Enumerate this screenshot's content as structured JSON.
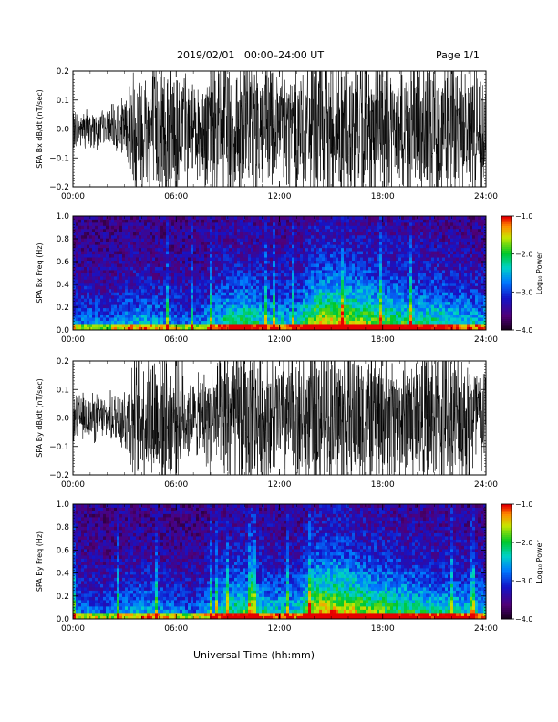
{
  "header": {
    "title": "2019/02/01   00:00–24:00 UT",
    "page": "Page 1/1"
  },
  "footer": {
    "xlabel": "Universal Time (hh:mm)"
  },
  "chart_data": [
    {
      "type": "line",
      "ylabel": "SPA Bx dB/dt (nT/sec)",
      "xlim": [
        0,
        24
      ],
      "ylim": [
        -0.2,
        0.2
      ],
      "xticks": [
        "00:00",
        "06:00",
        "12:00",
        "18:00",
        "24:00"
      ],
      "yticks": [
        "−0.2",
        "−0.1",
        "0.0",
        "0.1",
        "0.2"
      ],
      "amplitude_profile": {
        "hours": [
          0,
          1,
          2,
          3,
          3.5,
          4,
          5,
          6,
          7,
          8,
          9,
          10,
          11,
          12,
          13,
          14,
          15,
          16,
          17,
          18,
          19,
          20,
          21,
          22,
          23,
          24
        ],
        "amplitude": [
          0.05,
          0.06,
          0.05,
          0.09,
          0.18,
          0.2,
          0.22,
          0.22,
          0.12,
          0.2,
          0.22,
          0.22,
          0.22,
          0.18,
          0.2,
          0.22,
          0.22,
          0.22,
          0.22,
          0.2,
          0.2,
          0.22,
          0.22,
          0.22,
          0.2,
          0.15
        ]
      }
    },
    {
      "type": "heatmap",
      "ylabel": "SPA Bx Freq (Hz)",
      "xlim": [
        0,
        24
      ],
      "ylim": [
        0,
        1
      ],
      "xticks": [
        "00:00",
        "06:00",
        "12:00",
        "18:00",
        "24:00"
      ],
      "yticks": [
        "0.0",
        "0.2",
        "0.4",
        "0.6",
        "0.8",
        "1.0"
      ],
      "colorbar": {
        "label": "Log₁₀ Power",
        "range": [
          -4,
          -1
        ],
        "ticks": [
          "−4.0",
          "−3.0",
          "−2.0",
          "−1.0"
        ]
      },
      "activity_profile": {
        "hours": [
          0,
          1,
          2,
          3,
          4,
          5,
          6,
          7,
          8,
          9,
          10,
          11,
          12,
          13,
          14,
          15,
          16,
          17,
          18,
          19,
          20,
          21,
          22,
          23,
          24
        ],
        "level": [
          0.35,
          0.35,
          0.3,
          0.4,
          0.45,
          0.4,
          0.35,
          0.3,
          0.45,
          0.6,
          0.65,
          0.55,
          0.5,
          0.5,
          0.8,
          0.85,
          0.8,
          0.75,
          0.7,
          0.65,
          0.6,
          0.6,
          0.55,
          0.5,
          0.45
        ]
      }
    },
    {
      "type": "line",
      "ylabel": "SPA By dB/dt (nT/sec)",
      "xlim": [
        0,
        24
      ],
      "ylim": [
        -0.2,
        0.2
      ],
      "xticks": [
        "00:00",
        "06:00",
        "12:00",
        "18:00",
        "24:00"
      ],
      "yticks": [
        "−0.2",
        "−0.1",
        "0.0",
        "0.1",
        "0.2"
      ],
      "amplitude_profile": {
        "hours": [
          0,
          1,
          2,
          3,
          3.5,
          4,
          5,
          6,
          7,
          8,
          9,
          10,
          11,
          12,
          13,
          14,
          15,
          16,
          17,
          18,
          19,
          20,
          21,
          22,
          23,
          24
        ],
        "amplitude": [
          0.06,
          0.07,
          0.06,
          0.1,
          0.18,
          0.2,
          0.22,
          0.18,
          0.1,
          0.15,
          0.22,
          0.22,
          0.2,
          0.18,
          0.2,
          0.22,
          0.22,
          0.22,
          0.22,
          0.2,
          0.18,
          0.2,
          0.2,
          0.22,
          0.2,
          0.15
        ]
      }
    },
    {
      "type": "heatmap",
      "ylabel": "SPA By Freq (Hz)",
      "xlim": [
        0,
        24
      ],
      "ylim": [
        0,
        1
      ],
      "xticks": [
        "00:00",
        "06:00",
        "12:00",
        "18:00",
        "24:00"
      ],
      "yticks": [
        "0.0",
        "0.2",
        "0.4",
        "0.6",
        "0.8",
        "1.0"
      ],
      "colorbar": {
        "label": "Log₁₀ Power",
        "range": [
          -4,
          -1
        ],
        "ticks": [
          "−4.0",
          "−3.0",
          "−2.0",
          "−1.0"
        ]
      },
      "activity_profile": {
        "hours": [
          0,
          1,
          2,
          3,
          4,
          5,
          6,
          7,
          8,
          9,
          10,
          11,
          12,
          13,
          14,
          15,
          16,
          17,
          18,
          19,
          20,
          21,
          22,
          23,
          24
        ],
        "level": [
          0.35,
          0.35,
          0.3,
          0.4,
          0.45,
          0.4,
          0.35,
          0.3,
          0.45,
          0.6,
          0.65,
          0.55,
          0.5,
          0.5,
          0.85,
          0.9,
          0.85,
          0.75,
          0.7,
          0.65,
          0.6,
          0.55,
          0.55,
          0.5,
          0.45
        ]
      }
    }
  ]
}
